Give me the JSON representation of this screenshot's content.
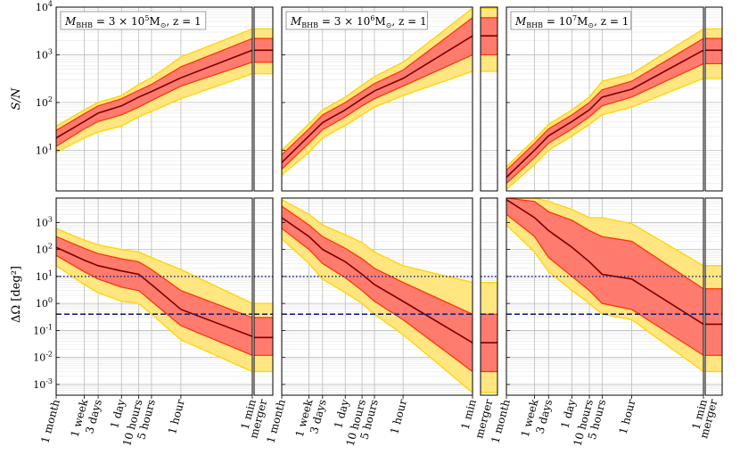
{
  "chart_data": {
    "type": "line",
    "x_categories": [
      "1 month",
      "1 week",
      "3 days",
      "1 day",
      "10 hours",
      "5 hours",
      "1 hour",
      "1 min"
    ],
    "merger_label": "merger",
    "ylabel_top": "S/N",
    "ylabel_bottom": "ΔΩ [deg²]",
    "yscale": "log",
    "top_yticks": [
      {
        "value": 10,
        "label_base": "10",
        "label_exp": "1"
      },
      {
        "value": 100,
        "label_base": "10",
        "label_exp": "2"
      },
      {
        "value": 1000,
        "label_base": "10",
        "label_exp": "3"
      },
      {
        "value": 10000,
        "label_base": "10",
        "label_exp": "4"
      }
    ],
    "bottom_yticks": [
      {
        "value": 0.001,
        "label_base": "10",
        "label_exp": "-3"
      },
      {
        "value": 0.01,
        "label_base": "10",
        "label_exp": "-2"
      },
      {
        "value": 0.1,
        "label_base": "10",
        "label_exp": "-1"
      },
      {
        "value": 1,
        "label_base": "10",
        "label_exp": "0"
      },
      {
        "value": 10,
        "label_base": "10",
        "label_exp": "1"
      },
      {
        "value": 100,
        "label_base": "10",
        "label_exp": "2"
      },
      {
        "value": 1000,
        "label_base": "10",
        "label_exp": "3"
      }
    ],
    "top_ylim": [
      1.4,
      10000
    ],
    "bottom_ylim": [
      0.0004,
      8000
    ],
    "reference_lines": [
      {
        "name": "10 deg2 threshold",
        "value": 10,
        "style": "dotted",
        "color": "#1a237e"
      },
      {
        "name": "0.4 deg2 threshold",
        "value": 0.4,
        "style": "dashed",
        "color": "#1a237e"
      }
    ],
    "colors": {
      "outer_band": "#ffe680",
      "outer_edge": "#ffd400",
      "inner_band": "#ff7b6e",
      "inner_edge": "#ff3000",
      "median": "#7a0000"
    },
    "panels": [
      {
        "title": "M_BHB = 3 × 10^5 M⊙, z = 1",
        "title_parts": {
          "m": "M",
          "sub": "BHB",
          "eq": " = 3 × 10",
          "exp": "5",
          "unit": "M",
          "unit_sub": "⊙",
          "z": ", z = 1"
        },
        "sn": {
          "median": [
            18,
            40,
            60,
            85,
            130,
            170,
            330,
            1250
          ],
          "inner_low": [
            12,
            28,
            40,
            55,
            80,
            110,
            220,
            700
          ],
          "inner_high": [
            26,
            58,
            85,
            120,
            180,
            240,
            560,
            2200
          ],
          "outer_low": [
            9,
            18,
            24,
            32,
            50,
            65,
            120,
            400
          ],
          "outer_high": [
            32,
            70,
            100,
            140,
            240,
            330,
            900,
            3500
          ],
          "merger": {
            "median": 1250,
            "inner": [
              700,
              2200
            ],
            "outer": [
              400,
              3500
            ]
          }
        },
        "dOmega": {
          "median": [
            120,
            40,
            25,
            16,
            12,
            5,
            0.6,
            0.06
          ],
          "inner_low": [
            60,
            15,
            8,
            4,
            3,
            1.2,
            0.15,
            0.012
          ],
          "inner_high": [
            300,
            110,
            70,
            45,
            35,
            18,
            3,
            0.3
          ],
          "outer_low": [
            25,
            5,
            2.5,
            1.2,
            1,
            0.4,
            0.045,
            0.003
          ],
          "outer_high": [
            600,
            220,
            150,
            100,
            80,
            50,
            18,
            1.0
          ],
          "merger": {
            "median": 0.055,
            "inner": [
              0.012,
              0.3
            ],
            "outer": [
              0.003,
              1.0
            ]
          }
        }
      },
      {
        "title": "M_BHB = 3 × 10^6 M⊙, z = 1",
        "title_parts": {
          "m": "M",
          "sub": "BHB",
          "eq": " = 3 × 10",
          "exp": "6",
          "unit": "M",
          "unit_sub": "⊙",
          "z": ", z = 1"
        },
        "sn": {
          "median": [
            5.5,
            20,
            38,
            70,
            120,
            175,
            320,
            2500
          ],
          "inner_low": [
            4,
            14,
            27,
            50,
            85,
            120,
            220,
            1000
          ],
          "inner_high": [
            8,
            28,
            55,
            100,
            170,
            250,
            480,
            6000
          ],
          "outer_low": [
            3,
            9,
            18,
            33,
            55,
            80,
            140,
            450
          ],
          "outer_high": [
            10,
            36,
            70,
            130,
            230,
            350,
            700,
            9500
          ],
          "merger": {
            "median": 2500,
            "inner": [
              1000,
              6000
            ],
            "outer": [
              450,
              9500
            ]
          }
        },
        "dOmega": {
          "median": [
            1500,
            300,
            100,
            35,
            12,
            5,
            1.2,
            0.035
          ],
          "inner_low": [
            600,
            100,
            30,
            9,
            3,
            1.2,
            0.25,
            0.003
          ],
          "inner_high": [
            4000,
            800,
            300,
            110,
            45,
            20,
            6,
            0.4
          ],
          "outer_low": [
            250,
            30,
            8,
            2.5,
            1,
            0.4,
            0.07,
            0.0005
          ],
          "outer_high": [
            7000,
            2000,
            800,
            350,
            180,
            80,
            25,
            6
          ],
          "merger": {
            "median": 0.035,
            "inner": [
              0.003,
              0.4
            ],
            "outer": [
              0.0005,
              6
            ]
          }
        }
      },
      {
        "title": "M_BHB = 10^7 M⊙, z = 1",
        "title_parts": {
          "m": "M",
          "sub": "BHB",
          "eq": " = 10",
          "exp": "7",
          "unit": "M",
          "unit_sub": "⊙",
          "z": ", z = 1"
        },
        "sn": {
          "median": [
            2.7,
            10,
            20,
            40,
            70,
            130,
            190,
            1250
          ],
          "inner_low": [
            2,
            7,
            14,
            28,
            50,
            85,
            130,
            650
          ],
          "inner_high": [
            3.8,
            14,
            28,
            55,
            100,
            185,
            280,
            2200
          ],
          "outer_low": [
            1.5,
            5,
            10,
            20,
            35,
            55,
            80,
            320
          ],
          "outer_high": [
            4.5,
            17,
            35,
            70,
            130,
            280,
            400,
            3500
          ],
          "merger": {
            "median": 1250,
            "inner": [
              650,
              2200
            ],
            "outer": [
              320,
              3500
            ]
          }
        },
        "dOmega": {
          "median": [
            7000,
            1500,
            500,
            120,
            35,
            12,
            8,
            0.17
          ],
          "inner_low": [
            2000,
            300,
            50,
            10,
            3,
            1,
            0.6,
            0.012
          ],
          "inner_high": [
            8000,
            6000,
            2500,
            1200,
            500,
            300,
            200,
            3.5
          ],
          "outer_low": [
            800,
            80,
            15,
            3,
            1,
            0.4,
            0.25,
            0.003
          ],
          "outer_high": [
            8000,
            8000,
            6000,
            3000,
            1500,
            1500,
            900,
            25
          ],
          "merger": {
            "median": 0.17,
            "inner": [
              0.012,
              3.5
            ],
            "outer": [
              0.003,
              25
            ]
          }
        }
      }
    ]
  }
}
